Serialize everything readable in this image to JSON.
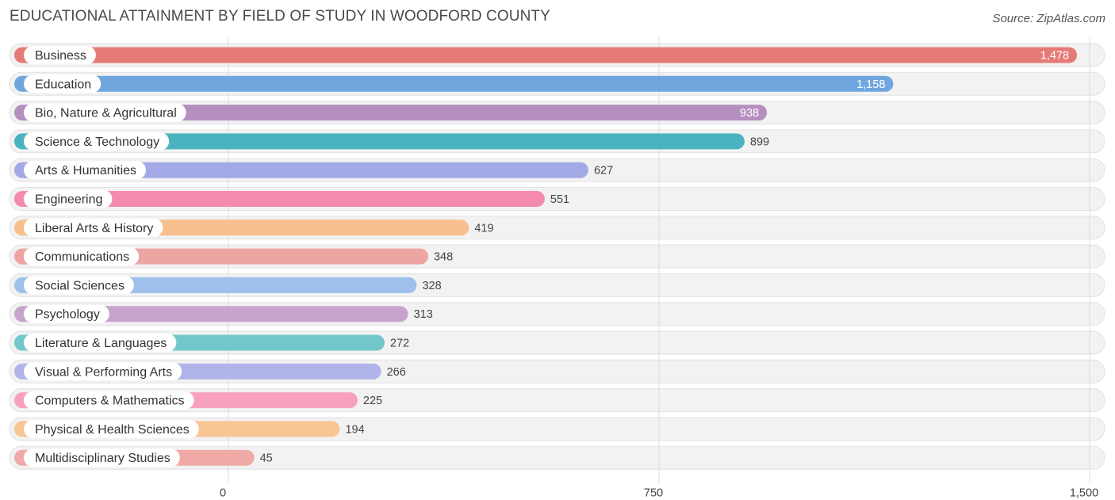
{
  "title": "EDUCATIONAL ATTAINMENT BY FIELD OF STUDY IN WOODFORD COUNTY",
  "source": "Source: ZipAtlas.com",
  "chart_data": {
    "type": "bar",
    "orientation": "horizontal",
    "title": "EDUCATIONAL ATTAINMENT BY FIELD OF STUDY IN WOODFORD COUNTY",
    "xlabel": "",
    "ylabel": "",
    "xlim": [
      0,
      1500
    ],
    "ticks": [
      0,
      750,
      1500
    ],
    "tick_labels": [
      "0",
      "750",
      "1,500"
    ],
    "grid": true,
    "categories": [
      "Business",
      "Education",
      "Bio, Nature & Agricultural",
      "Science & Technology",
      "Arts & Humanities",
      "Engineering",
      "Liberal Arts & History",
      "Communications",
      "Social Sciences",
      "Psychology",
      "Literature & Languages",
      "Visual & Performing Arts",
      "Computers & Mathematics",
      "Physical & Health Sciences",
      "Multidisciplinary Studies"
    ],
    "values": [
      1478,
      1158,
      938,
      899,
      627,
      551,
      419,
      348,
      328,
      313,
      272,
      266,
      225,
      194,
      45
    ],
    "value_labels": [
      "1,478",
      "1,158",
      "938",
      "899",
      "627",
      "551",
      "419",
      "348",
      "328",
      "313",
      "272",
      "266",
      "225",
      "194",
      "45"
    ],
    "colors": [
      "#e57b77",
      "#6fa6de",
      "#b58fc0",
      "#4bb3bf",
      "#a3a8e6",
      "#f48ab0",
      "#f7c08e",
      "#eea5a2",
      "#9ec0ea",
      "#c7a4cc",
      "#73c7cb",
      "#b1b4ea",
      "#f7a1be",
      "#f8c594",
      "#f0a9a6"
    ]
  }
}
